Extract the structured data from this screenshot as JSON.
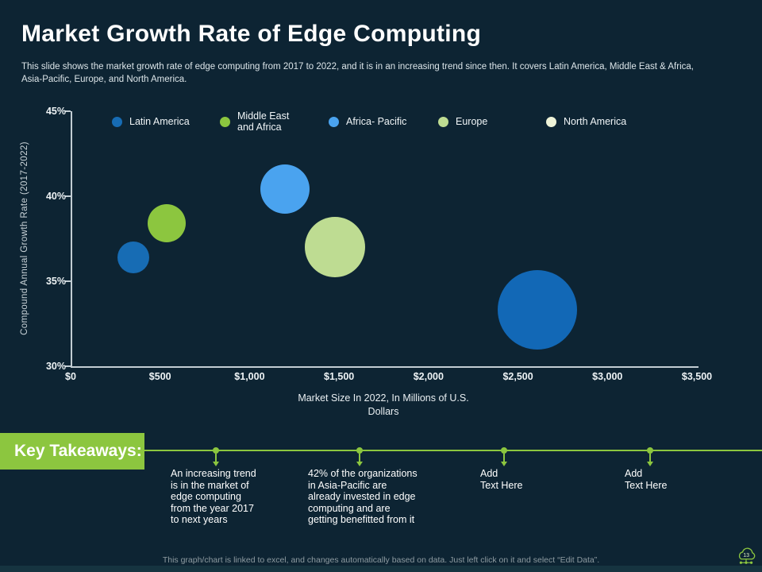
{
  "slide": {
    "title": "Market Growth Rate of Edge Computing",
    "subtitle": "This slide shows the market growth rate of edge computing from 2017 to 2022, and it is in an increasing trend since then. It covers Latin America, Middle East & Africa,\nAsia-Pacific, Europe, and North America.",
    "footer_note": "This graph/chart is linked to excel, and changes automatically based on data. Just left click on it and select “Edit Data”.",
    "page_number": "13"
  },
  "colors": {
    "background": "#0d2433",
    "accent_green": "#8cc63f",
    "axis": "#c2cdd3",
    "bottom_strip": "#163440"
  },
  "chart_data": {
    "type": "scatter",
    "subtype": "bubble",
    "title": "",
    "xlabel": "Market Size In 2022, In Millions of U.S.\nDollars",
    "ylabel": "Compound Annual Growth Rate (2017-2022)",
    "xlim": [
      0,
      3500
    ],
    "ylim": [
      30,
      45
    ],
    "grid": false,
    "legend_position": "top",
    "x_ticks": [
      {
        "label": "$0",
        "value": 0
      },
      {
        "label": "$500",
        "value": 500
      },
      {
        "label": "$1,000",
        "value": 1000
      },
      {
        "label": "$1,500",
        "value": 1500
      },
      {
        "label": "$2,000",
        "value": 2000
      },
      {
        "label": "$2,500",
        "value": 2500
      },
      {
        "label": "$3,000",
        "value": 3000
      },
      {
        "label": "$3,500",
        "value": 3500
      }
    ],
    "y_ticks": [
      {
        "label": "30%",
        "value": 30
      },
      {
        "label": "35%",
        "value": 35
      },
      {
        "label": "40%",
        "value": 40
      },
      {
        "label": "45%",
        "value": 45
      }
    ],
    "series": [
      {
        "name": "Latin America",
        "x": 340,
        "y": 36.4,
        "radius_px": 20,
        "color": "#176cb4"
      },
      {
        "name": "Middle East and Africa",
        "x": 530,
        "y": 38.4,
        "radius_px": 24,
        "color": "#8cc63f"
      },
      {
        "name": "Africa- Pacific",
        "x": 1190,
        "y": 40.4,
        "radius_px": 31,
        "color": "#4aa3ef"
      },
      {
        "name": "Europe",
        "x": 1470,
        "y": 37,
        "radius_px": 38,
        "color": "#bedc92"
      },
      {
        "name": "North America",
        "x": 2600,
        "y": 33.3,
        "radius_px": 50,
        "color": "#1268b6"
      }
    ],
    "legend": [
      {
        "label": "Latin America",
        "color": "#176cb4"
      },
      {
        "label": "Middle East\nand Africa",
        "color": "#8cc63f"
      },
      {
        "label": "Africa- Pacific",
        "color": "#4aa3ef"
      },
      {
        "label": "Europe",
        "color": "#bedc92"
      },
      {
        "label": "North America",
        "color": "#eef3d8"
      }
    ]
  },
  "key_takeaways": {
    "heading": "Key Takeaways:",
    "items": [
      "An increasing trend\nis in the market of\nedge computing\nfrom the year 2017\nto next years",
      "42% of the organizations\nin Asia-Pacific are\nalready invested in edge\ncomputing and are\ngetting benefitted from it",
      "Add\nText Here",
      "Add\nText Here"
    ]
  }
}
